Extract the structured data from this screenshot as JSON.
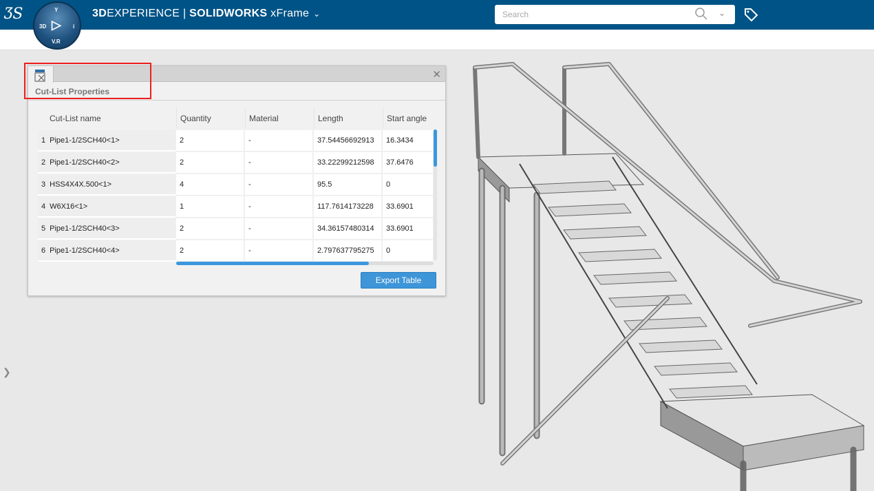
{
  "header": {
    "brand_bold": "3D",
    "brand_rest": "EXPERIENCE",
    "separator": "|",
    "product": "SOLIDWORKS",
    "app": "xFrame",
    "compass": {
      "top": "Y",
      "left": "3D",
      "right": "i",
      "bottom": "V.R"
    }
  },
  "search": {
    "placeholder": "Search"
  },
  "panel": {
    "title": "Cut-List Properties",
    "export_label": "Export Table",
    "columns": [
      "Cut-List name",
      "Quantity",
      "Material",
      "Length",
      "Start angle"
    ],
    "rows": [
      {
        "idx": "1",
        "name": "Pipe1-1/2SCH40<1>",
        "quantity": "2",
        "material": "-",
        "length": "37.54456692913",
        "start_angle": "16.3434"
      },
      {
        "idx": "2",
        "name": "Pipe1-1/2SCH40<2>",
        "quantity": "2",
        "material": "-",
        "length": "33.22299212598",
        "start_angle": "37.6476"
      },
      {
        "idx": "3",
        "name": "HSS4X4X.500<1>",
        "quantity": "4",
        "material": "-",
        "length": "95.5",
        "start_angle": "0"
      },
      {
        "idx": "4",
        "name": "W6X16<1>",
        "quantity": "1",
        "material": "-",
        "length": "117.7614173228",
        "start_angle": "33.6901"
      },
      {
        "idx": "5",
        "name": "Pipe1-1/2SCH40<3>",
        "quantity": "2",
        "material": "-",
        "length": "34.36157480314",
        "start_angle": "33.6901"
      },
      {
        "idx": "6",
        "name": "Pipe1-1/2SCH40<4>",
        "quantity": "2",
        "material": "-",
        "length": "2.797637795275",
        "start_angle": "0"
      }
    ]
  },
  "colors": {
    "header": "#005386",
    "accent": "#3e95d8",
    "highlight": "#f01c1c"
  }
}
